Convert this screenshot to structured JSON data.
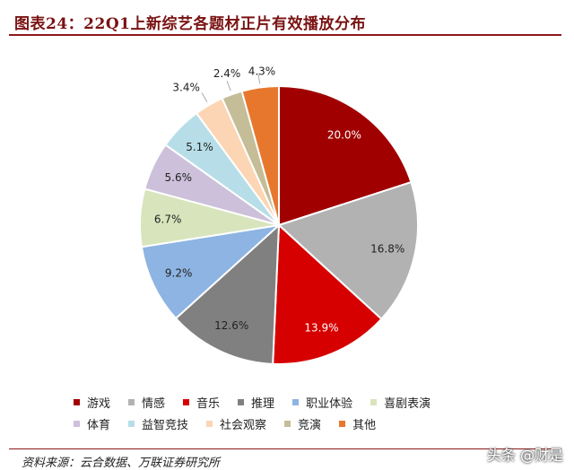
{
  "header": {
    "title": "图表24：22Q1上新综艺各题材正片有效播放分布"
  },
  "chart_data": {
    "type": "pie",
    "title": "图表24：22Q1上新综艺各题材正片有效播放分布",
    "categories": [
      "游戏",
      "情感",
      "音乐",
      "推理",
      "职业体验",
      "喜剧表演",
      "体育",
      "益智竞技",
      "社会观察",
      "竞演",
      "其他"
    ],
    "values": [
      20.0,
      16.8,
      13.9,
      12.6,
      9.2,
      6.7,
      5.6,
      5.1,
      3.4,
      2.4,
      4.3
    ],
    "labels": [
      "20.0%",
      "16.8%",
      "13.9%",
      "12.6%",
      "9.2%",
      "6.7%",
      "5.6%",
      "5.1%",
      "3.4%",
      "2.4%",
      "4.3%"
    ],
    "colors": [
      "#a10000",
      "#b2b2b2",
      "#d70000",
      "#808080",
      "#8db4e2",
      "#d8e4bc",
      "#ccc0da",
      "#b7dee8",
      "#fcd5b4",
      "#c4bd97",
      "#e8772e"
    ],
    "legend_placement": "bottom"
  },
  "legend": {
    "rows": [
      [
        "游戏",
        "情感",
        "音乐",
        "推理",
        "职业体验",
        "喜剧表演"
      ],
      [
        "体育",
        "益智竞技",
        "社会观察",
        "竞演",
        "其他"
      ]
    ]
  },
  "footer": {
    "source": "资料来源：云合数据、万联证券研究所"
  },
  "watermark": "头条 @财是"
}
